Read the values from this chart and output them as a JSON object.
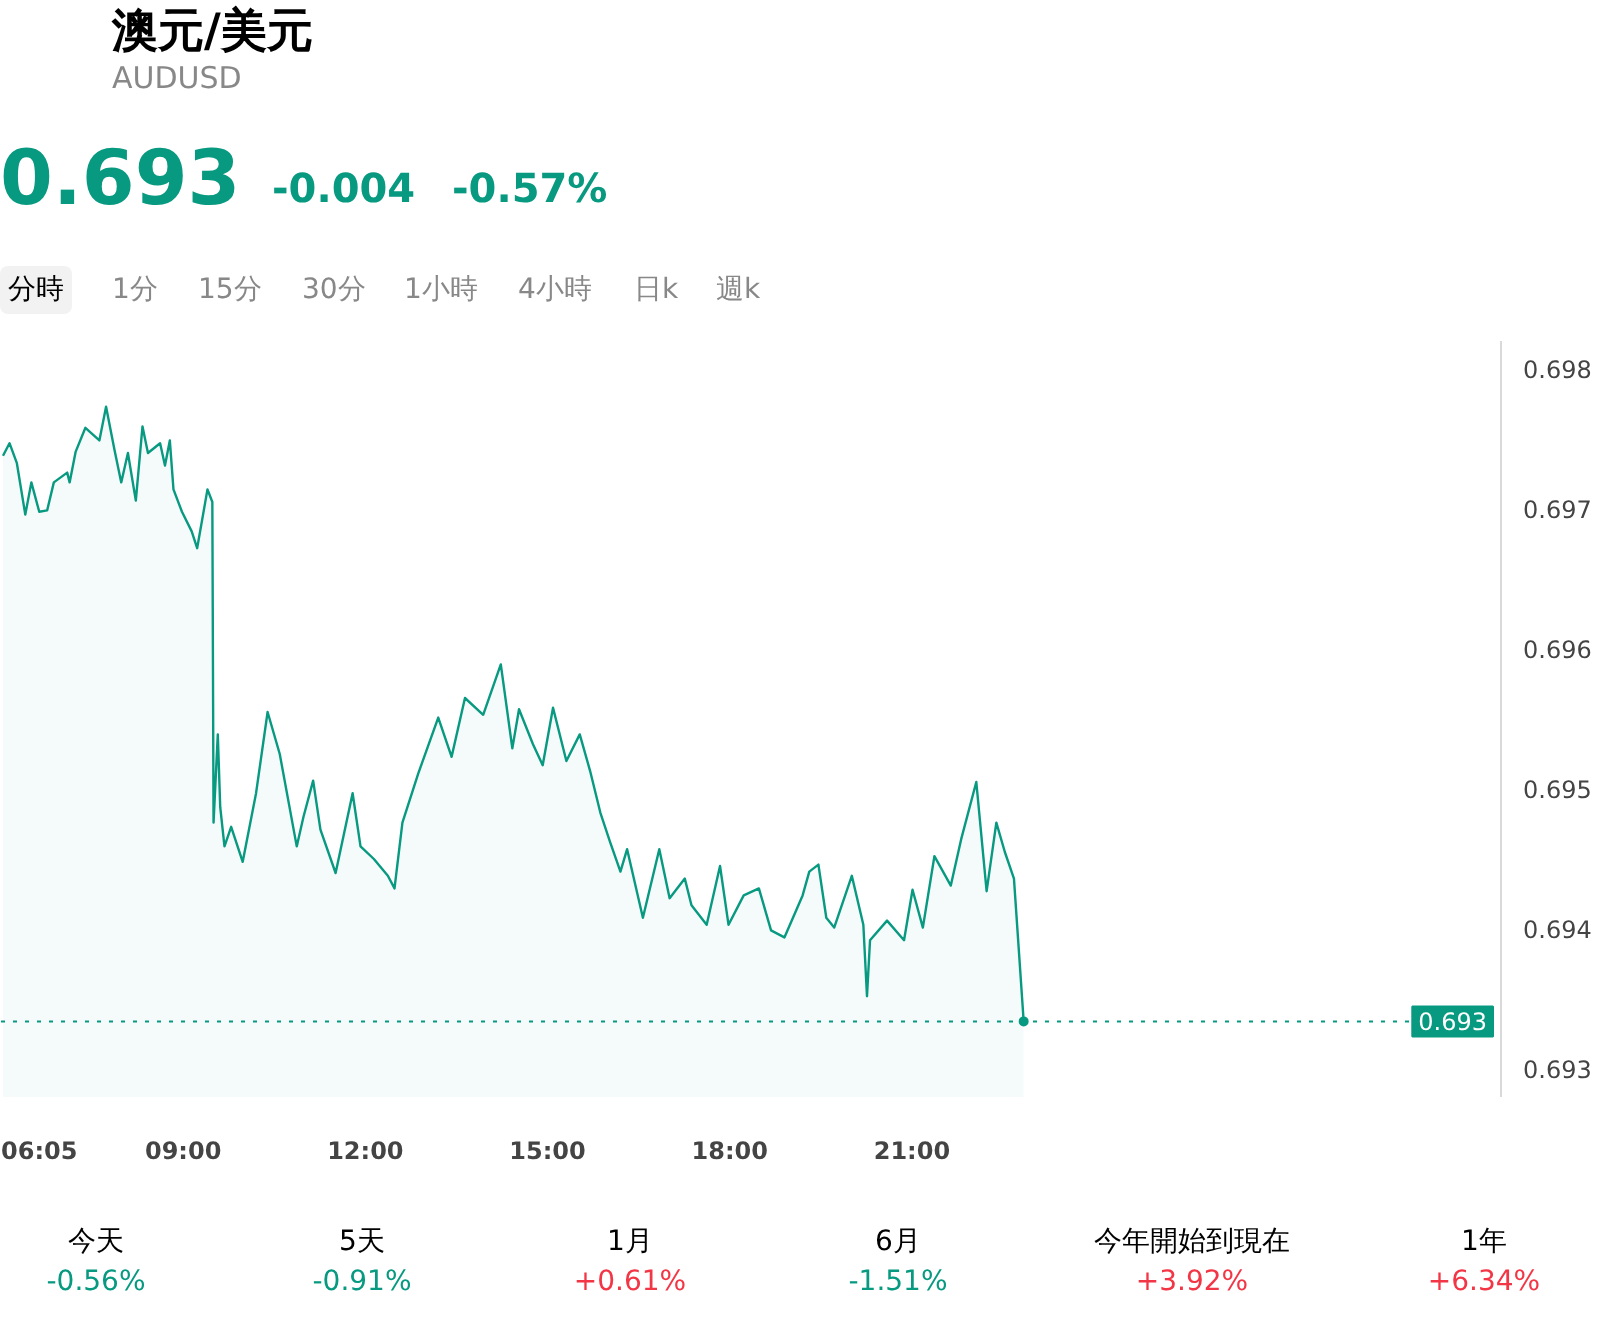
{
  "chart_data": {
    "type": "area",
    "title": "澳元/美元",
    "subtitle": "AUDUSD",
    "x": [
      6.033,
      6.14,
      6.26,
      6.4,
      6.5,
      6.63,
      6.76,
      6.87,
      7.09,
      7.13,
      7.23,
      7.39,
      7.62,
      7.73,
      7.87,
      7.98,
      8.09,
      8.22,
      8.33,
      8.42,
      8.62,
      8.7,
      8.78,
      8.84,
      8.98,
      9.14,
      9.23,
      9.4,
      9.48,
      9.5,
      9.57,
      9.61,
      9.68,
      9.79,
      9.98,
      10.2,
      10.39,
      10.59,
      10.87,
      10.98,
      11.14,
      11.26,
      11.51,
      11.79,
      11.92,
      12.14,
      12.37,
      12.48,
      12.61,
      12.87,
      13.2,
      13.42,
      13.64,
      13.94,
      14.23,
      14.42,
      14.53,
      14.76,
      14.92,
      15.09,
      15.31,
      15.53,
      15.7,
      15.87,
      16.03,
      16.2,
      16.31,
      16.57,
      16.84,
      17.01,
      17.26,
      17.37,
      17.62,
      17.84,
      17.98,
      18.23,
      18.48,
      18.68,
      18.9,
      19.2,
      19.31,
      19.46,
      19.59,
      19.72,
      20.01,
      20.2,
      20.26,
      20.31,
      20.59,
      20.87,
      21.01,
      21.18,
      21.37,
      21.64,
      21.81,
      22.06,
      22.23,
      22.39,
      22.53,
      22.68,
      22.84
    ],
    "series": [
      {
        "color": "#089981",
        "values": [
          0.69738,
          0.69747,
          0.69733,
          0.69696,
          0.69719,
          0.69698,
          0.69699,
          0.69719,
          0.69726,
          0.69719,
          0.69741,
          0.69758,
          0.69749,
          0.69773,
          0.69742,
          0.69719,
          0.6974,
          0.69706,
          0.69759,
          0.6974,
          0.69747,
          0.69731,
          0.69749,
          0.69714,
          0.69698,
          0.69684,
          0.69672,
          0.69714,
          0.69705,
          0.69476,
          0.69539,
          0.69487,
          0.69459,
          0.69473,
          0.69448,
          0.69497,
          0.69555,
          0.69525,
          0.69459,
          0.6948,
          0.69506,
          0.69471,
          0.6944,
          0.69497,
          0.69459,
          0.6945,
          0.69438,
          0.69429,
          0.69476,
          0.69511,
          0.69551,
          0.69523,
          0.69565,
          0.69553,
          0.69589,
          0.69529,
          0.69557,
          0.69532,
          0.69517,
          0.69558,
          0.6952,
          0.69539,
          0.69513,
          0.69483,
          0.69462,
          0.69441,
          0.69457,
          0.69408,
          0.69457,
          0.69422,
          0.69436,
          0.69417,
          0.69403,
          0.69445,
          0.69403,
          0.69424,
          0.69429,
          0.69399,
          0.69394,
          0.69424,
          0.69441,
          0.69446,
          0.69408,
          0.69401,
          0.69438,
          0.69403,
          0.69352,
          0.69392,
          0.69406,
          0.69392,
          0.69428,
          0.69401,
          0.69452,
          0.69431,
          0.69464,
          0.69505,
          0.69427,
          0.69476,
          0.69455,
          0.69436,
          0.69334
        ]
      }
    ],
    "xlim": [
      6.0,
      30.7
    ],
    "xticks": [
      {
        "value": 6.0833,
        "label": "06:05"
      },
      {
        "value": 9,
        "label": "09:00"
      },
      {
        "value": 12,
        "label": "12:00"
      },
      {
        "value": 15,
        "label": "15:00"
      },
      {
        "value": 18,
        "label": "18:00"
      },
      {
        "value": 21,
        "label": "21:00"
      }
    ],
    "ylim": [
      0.6928,
      0.6982
    ],
    "yticks": [
      0.693,
      0.694,
      0.695,
      0.696,
      0.697,
      0.698
    ],
    "ref_lines": [
      {
        "axis": "y",
        "value": 0.69334,
        "label": "0.693",
        "color": "#089981",
        "line_style": "dotted"
      }
    ],
    "annotations": [
      "0.693",
      "-0.004",
      "-0.57%",
      "分時",
      "1分",
      "15分",
      "30分",
      "1小時",
      "4小時",
      "日k",
      "週k",
      "今天",
      "-0.56%",
      "5天",
      "-0.91%",
      "1月",
      "+0.61%",
      "6月",
      "-1.51%",
      "今年開始到現在",
      "+3.92%",
      "1年",
      "+6.34%"
    ]
  }
}
